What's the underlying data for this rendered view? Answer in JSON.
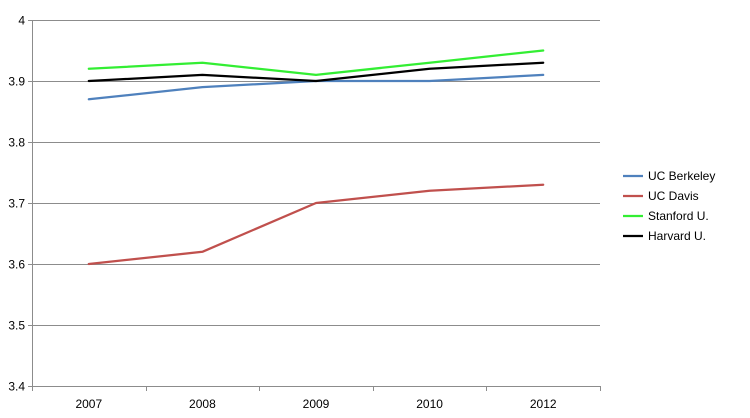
{
  "chart_data": {
    "type": "line",
    "title": "",
    "xlabel": "",
    "ylabel": "",
    "categories": [
      "2007",
      "2008",
      "2009",
      "2010",
      "2012"
    ],
    "ylim": [
      3.4,
      4
    ],
    "y_ticks": [
      "3.4",
      "3.5",
      "3.6",
      "3.7",
      "3.8",
      "3.9",
      "4"
    ],
    "grid": "horizontal",
    "legend_position": "right",
    "series": [
      {
        "name": "UC Berkeley",
        "color": "#4f81bd",
        "values": [
          3.87,
          3.89,
          3.9,
          3.9,
          3.91
        ]
      },
      {
        "name": "UC Davis",
        "color": "#c0504d",
        "values": [
          3.6,
          3.62,
          3.7,
          3.72,
          3.73
        ]
      },
      {
        "name": "Stanford U.",
        "color": "#33ee33",
        "values": [
          3.92,
          3.93,
          3.91,
          3.93,
          3.95
        ]
      },
      {
        "name": "Harvard U.",
        "color": "#000000",
        "values": [
          3.9,
          3.91,
          3.9,
          3.92,
          3.93
        ]
      }
    ]
  }
}
